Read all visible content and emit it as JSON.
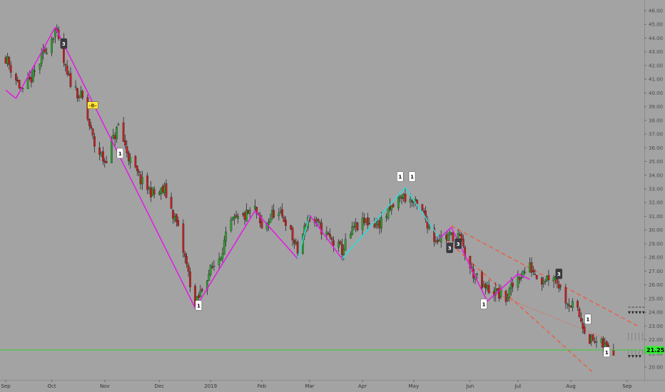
{
  "chart_data": {
    "type": "candlestick",
    "title": "",
    "xlabel": "",
    "ylabel": "",
    "ylim": [
      19.5,
      46.5
    ],
    "y_ticks": [
      "20.00",
      "21.00",
      "22.00",
      "23.00",
      "24.00",
      "25.00",
      "26.00",
      "27.00",
      "28.00",
      "29.00",
      "30.00",
      "31.00",
      "32.00",
      "33.00",
      "34.00",
      "35.00",
      "36.00",
      "37.00",
      "38.00",
      "39.00",
      "40.00",
      "41.00",
      "42.00",
      "43.00",
      "44.00",
      "45.00",
      "46.00"
    ],
    "x_ticks": [
      {
        "label": "Sep",
        "date": "2018-09-04"
      },
      {
        "label": "Oct",
        "date": "2018-10-01"
      },
      {
        "label": "Nov",
        "date": "2018-11-01"
      },
      {
        "label": "Dec",
        "date": "2018-12-03"
      },
      {
        "label": "2019",
        "date": "2019-01-02"
      },
      {
        "label": "Feb",
        "date": "2019-02-01"
      },
      {
        "label": "Mar",
        "date": "2019-03-01"
      },
      {
        "label": "Apr",
        "date": "2019-04-01"
      },
      {
        "label": "May",
        "date": "2019-05-01"
      },
      {
        "label": "Jun",
        "date": "2019-06-03"
      },
      {
        "label": "Jul",
        "date": "2019-07-01"
      },
      {
        "label": "Aug",
        "date": "2019-08-01"
      },
      {
        "label": "Sep",
        "date": "2019-09-03"
      }
    ],
    "price_anchors": [
      {
        "date": "2018-09-04",
        "close": 42.6
      },
      {
        "date": "2018-09-14",
        "close": 40.0
      },
      {
        "date": "2018-09-21",
        "close": 41.5
      },
      {
        "date": "2018-10-03",
        "close": 44.6
      },
      {
        "date": "2018-10-10",
        "close": 41.2
      },
      {
        "date": "2018-10-19",
        "close": 39.5
      },
      {
        "date": "2018-10-26",
        "close": 36.2
      },
      {
        "date": "2018-11-01",
        "close": 35.0
      },
      {
        "date": "2018-11-09",
        "close": 37.6
      },
      {
        "date": "2018-11-16",
        "close": 35.0
      },
      {
        "date": "2018-11-23",
        "close": 33.4
      },
      {
        "date": "2018-11-30",
        "close": 32.6
      },
      {
        "date": "2018-12-06",
        "close": 32.9
      },
      {
        "date": "2018-12-13",
        "close": 30.5
      },
      {
        "date": "2018-12-19",
        "close": 27.4
      },
      {
        "date": "2018-12-24",
        "close": 24.4
      },
      {
        "date": "2018-12-31",
        "close": 26.7
      },
      {
        "date": "2019-01-07",
        "close": 28.0
      },
      {
        "date": "2019-01-14",
        "close": 30.5
      },
      {
        "date": "2019-01-22",
        "close": 31.0
      },
      {
        "date": "2019-01-28",
        "close": 31.5
      },
      {
        "date": "2019-02-01",
        "close": 30.0
      },
      {
        "date": "2019-02-08",
        "close": 31.3
      },
      {
        "date": "2019-02-15",
        "close": 30.7
      },
      {
        "date": "2019-02-22",
        "close": 28.4
      },
      {
        "date": "2019-02-28",
        "close": 30.9
      },
      {
        "date": "2019-03-07",
        "close": 30.2
      },
      {
        "date": "2019-03-14",
        "close": 29.2
      },
      {
        "date": "2019-03-20",
        "close": 28.5
      },
      {
        "date": "2019-03-27",
        "close": 30.1
      },
      {
        "date": "2019-04-03",
        "close": 30.6
      },
      {
        "date": "2019-04-10",
        "close": 30.4
      },
      {
        "date": "2019-04-17",
        "close": 31.4
      },
      {
        "date": "2019-04-24",
        "close": 32.5
      },
      {
        "date": "2019-05-01",
        "close": 32.0
      },
      {
        "date": "2019-05-07",
        "close": 31.1
      },
      {
        "date": "2019-05-13",
        "close": 29.4
      },
      {
        "date": "2019-05-20",
        "close": 29.5
      },
      {
        "date": "2019-05-27",
        "close": 29.7
      },
      {
        "date": "2019-06-03",
        "close": 27.2
      },
      {
        "date": "2019-06-10",
        "close": 25.8
      },
      {
        "date": "2019-06-17",
        "close": 25.5
      },
      {
        "date": "2019-06-24",
        "close": 25.0
      },
      {
        "date": "2019-07-01",
        "close": 26.6
      },
      {
        "date": "2019-07-08",
        "close": 27.3
      },
      {
        "date": "2019-07-15",
        "close": 26.4
      },
      {
        "date": "2019-07-22",
        "close": 26.8
      },
      {
        "date": "2019-07-29",
        "close": 25.0
      },
      {
        "date": "2019-08-05",
        "close": 24.0
      },
      {
        "date": "2019-08-12",
        "close": 22.0
      },
      {
        "date": "2019-08-19",
        "close": 21.6
      },
      {
        "date": "2019-08-26",
        "close": 21.3
      }
    ],
    "zigzag": [
      {
        "date": "2018-09-04",
        "price": 40.2,
        "color": "#e020e0"
      },
      {
        "date": "2018-09-10",
        "price": 39.6,
        "color": "#e020e0"
      },
      {
        "date": "2018-10-03",
        "price": 44.8,
        "color": "#e020e0"
      },
      {
        "date": "2018-12-24",
        "price": 24.3,
        "color": "#e020e0"
      },
      {
        "date": "2019-01-28",
        "price": 31.4,
        "color": "#e020e0"
      },
      {
        "date": "2019-02-22",
        "price": 27.9,
        "color": "#e020e0"
      },
      {
        "date": "2019-03-01",
        "price": 31.1,
        "color": "#3ad6d6"
      },
      {
        "date": "2019-03-20",
        "price": 27.9,
        "color": "#e020e0"
      },
      {
        "date": "2019-04-26",
        "price": 33.1,
        "color": "#3ad6d6"
      },
      {
        "date": "2019-05-16",
        "price": 29.4,
        "color": "#3ad6d6"
      },
      {
        "date": "2019-05-23",
        "price": 30.2,
        "color": "#e020e0"
      },
      {
        "date": "2019-06-13",
        "price": 24.8,
        "color": "#e020e0"
      },
      {
        "date": "2019-07-01",
        "price": 26.8,
        "color": "#e020e0"
      },
      {
        "date": "2019-07-08",
        "price": 26.4,
        "color": "#e020e0"
      }
    ],
    "trend_lines": [
      {
        "style": "dashed",
        "from": {
          "date": "2019-05-23",
          "price": 30.3
        },
        "to": {
          "date": "2019-09-09",
          "price": 23.0
        }
      },
      {
        "style": "dashed",
        "from": {
          "date": "2019-05-20",
          "price": 29.3
        },
        "to": {
          "date": "2019-08-14",
          "price": 19.6
        }
      },
      {
        "style": "dotted",
        "from": {
          "date": "2019-06-13",
          "price": 25.6
        },
        "to": {
          "date": "2019-08-21",
          "price": 22.1
        }
      }
    ],
    "hline": {
      "price": 21.25,
      "color": "#33cc33",
      "label": "21.25"
    },
    "markers": [
      {
        "date": "2018-10-08",
        "price": 43.6,
        "text": "3",
        "kind": "sell"
      },
      {
        "date": "2018-10-25",
        "price": 39.1,
        "text": "-B-",
        "kind": "buy-setup"
      },
      {
        "date": "2018-11-10",
        "price": 35.6,
        "text": "1",
        "kind": "buy"
      },
      {
        "date": "2018-12-26",
        "price": 24.5,
        "text": "1",
        "kind": "buy"
      },
      {
        "date": "2019-04-23",
        "price": 33.9,
        "text": "1",
        "kind": "buy"
      },
      {
        "date": "2019-04-30",
        "price": 33.9,
        "text": "1",
        "kind": "buy"
      },
      {
        "date": "2019-05-22",
        "price": 28.7,
        "text": "3",
        "kind": "sell"
      },
      {
        "date": "2019-05-27",
        "price": 29.0,
        "text": "3",
        "kind": "sell"
      },
      {
        "date": "2019-06-11",
        "price": 24.6,
        "text": "1",
        "kind": "buy"
      },
      {
        "date": "2019-07-25",
        "price": 26.8,
        "text": "3",
        "kind": "sell"
      },
      {
        "date": "2019-08-11",
        "price": 23.5,
        "text": "1",
        "kind": "buy"
      },
      {
        "date": "2019-08-22",
        "price": 21.1,
        "text": "1",
        "kind": "buy"
      }
    ],
    "grid": false,
    "legend": "none"
  }
}
